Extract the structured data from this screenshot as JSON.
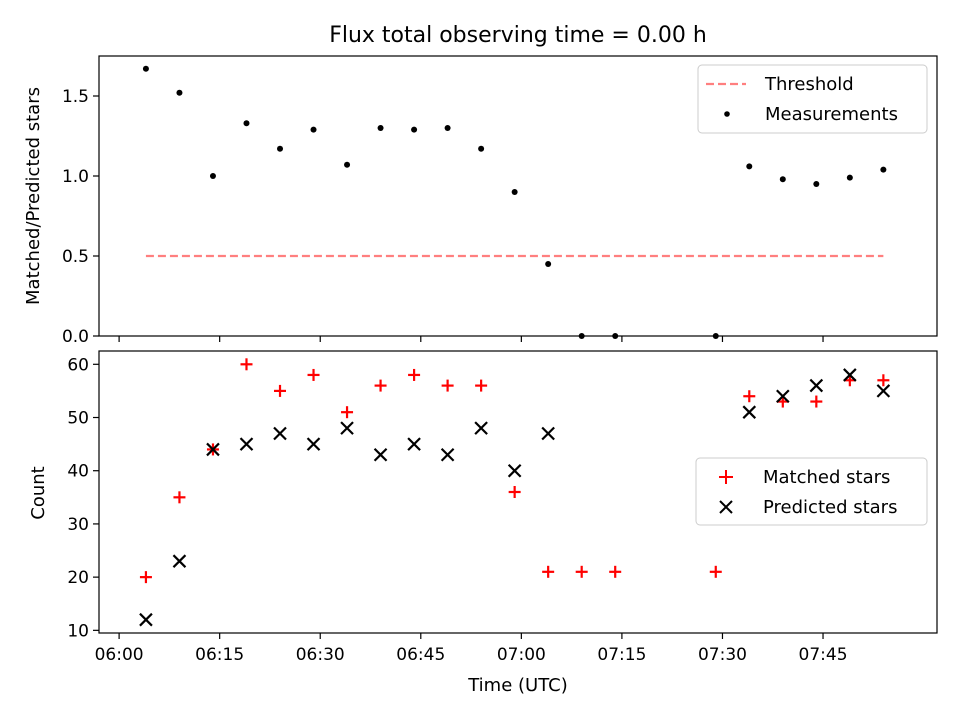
{
  "title": "Flux total observing time = 0.00 h",
  "xlabel": "Time (UTC)",
  "x_ticks": [
    "06:00",
    "06:15",
    "06:30",
    "06:45",
    "07:00",
    "07:15",
    "07:30",
    "07:45"
  ],
  "chart_data": [
    {
      "type": "scatter",
      "title": "Flux total observing time = 0.00 h",
      "ylabel": "Matched/Predicted stars",
      "xlabel": "",
      "xlim": [
        "05:57",
        "08:02"
      ],
      "ylim": [
        0,
        1.75
      ],
      "y_ticks": [
        "0.0",
        "0.5",
        "1.0",
        "1.5"
      ],
      "legend": {
        "placement": "top-right",
        "entries": [
          "Threshold",
          "Measurements"
        ]
      },
      "threshold": {
        "name": "Threshold",
        "value": 0.5,
        "x_start": "06:04",
        "x_end": "07:54",
        "color": "#ff7f7f",
        "style": "dashed"
      },
      "series": [
        {
          "name": "Measurements",
          "color": "#000000",
          "marker": "dot",
          "x": [
            "06:04",
            "06:09",
            "06:14",
            "06:19",
            "06:24",
            "06:29",
            "06:34",
            "06:39",
            "06:44",
            "06:49",
            "06:54",
            "06:59",
            "07:04",
            "07:09",
            "07:14",
            "07:29",
            "07:34",
            "07:39",
            "07:44",
            "07:49",
            "07:54"
          ],
          "y": [
            1.67,
            1.52,
            1.0,
            1.33,
            1.17,
            1.29,
            1.07,
            1.3,
            1.29,
            1.3,
            1.17,
            0.9,
            0.45,
            0.0,
            0.0,
            0.0,
            1.06,
            0.98,
            0.95,
            0.99,
            1.04
          ]
        }
      ]
    },
    {
      "type": "scatter",
      "ylabel": "Count",
      "xlabel": "Time (UTC)",
      "xlim": [
        "05:57",
        "08:02"
      ],
      "ylim": [
        9.5,
        62.5
      ],
      "y_ticks": [
        "10",
        "20",
        "30",
        "40",
        "50",
        "60"
      ],
      "legend": {
        "placement": "center-right",
        "entries": [
          "Matched stars",
          "Predicted stars"
        ]
      },
      "series": [
        {
          "name": "Matched stars",
          "color": "#ff0000",
          "marker": "plus",
          "x": [
            "06:04",
            "06:09",
            "06:14",
            "06:19",
            "06:24",
            "06:29",
            "06:34",
            "06:39",
            "06:44",
            "06:49",
            "06:54",
            "06:59",
            "07:04",
            "07:09",
            "07:14",
            "07:29",
            "07:34",
            "07:39",
            "07:44",
            "07:49",
            "07:54"
          ],
          "y": [
            20,
            35,
            44,
            60,
            55,
            58,
            51,
            56,
            58,
            56,
            56,
            36,
            21,
            21,
            21,
            21,
            54,
            53,
            53,
            57,
            57
          ]
        },
        {
          "name": "Predicted stars",
          "color": "#000000",
          "marker": "x",
          "x": [
            "06:04",
            "06:09",
            "06:14",
            "06:19",
            "06:24",
            "06:29",
            "06:34",
            "06:39",
            "06:44",
            "06:49",
            "06:54",
            "06:59",
            "07:04",
            "07:34",
            "07:39",
            "07:44",
            "07:49",
            "07:54"
          ],
          "y": [
            12,
            23,
            44,
            45,
            47,
            45,
            48,
            43,
            45,
            43,
            48,
            40,
            47,
            51,
            54,
            56,
            58,
            55
          ]
        }
      ]
    }
  ]
}
